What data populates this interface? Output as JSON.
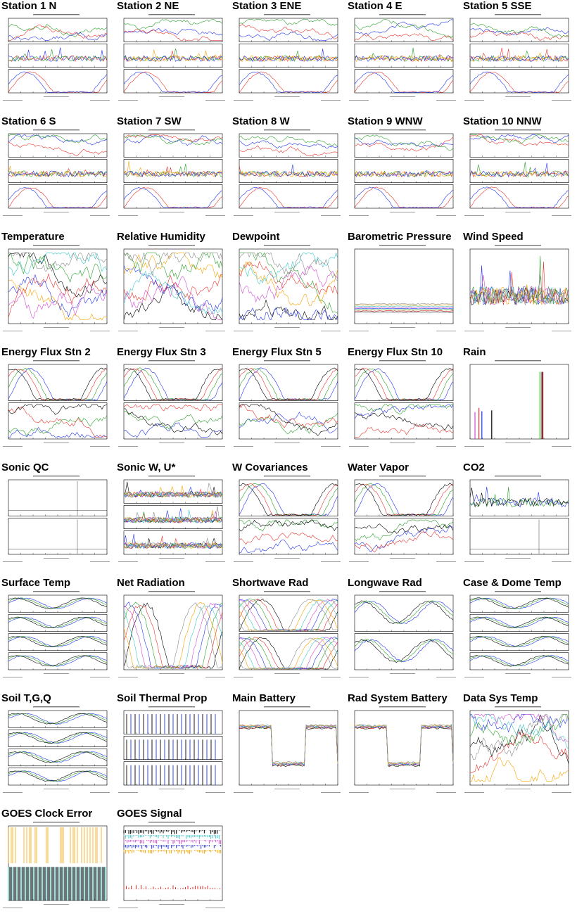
{
  "colors": {
    "red": "#e8332d",
    "green": "#2aa02a",
    "blue": "#2233ee",
    "orange": "#f5a400",
    "black": "#000000",
    "cyan": "#3fc6c6",
    "magenta": "#d24ad2",
    "gray": "#8a8a8a"
  },
  "plots": [
    {
      "title": "Station 1 N",
      "kind": "station",
      "panels": 3
    },
    {
      "title": "Station 2 NE",
      "kind": "station",
      "panels": 3
    },
    {
      "title": "Station 3 ENE",
      "kind": "station",
      "panels": 3
    },
    {
      "title": "Station 4 E",
      "kind": "station",
      "panels": 3
    },
    {
      "title": "Station 5 SSE",
      "kind": "station",
      "panels": 3
    },
    {
      "title": "Station 6 S",
      "kind": "station",
      "panels": 3
    },
    {
      "title": "Station 7 SW",
      "kind": "station",
      "panels": 3
    },
    {
      "title": "Station 8 W",
      "kind": "station",
      "panels": 3
    },
    {
      "title": "Station 9 WNW",
      "kind": "station",
      "panels": 3
    },
    {
      "title": "Station 10 NNW",
      "kind": "station",
      "panels": 3
    },
    {
      "title": "Temperature",
      "kind": "multi",
      "panels": 1
    },
    {
      "title": "Relative Humidity",
      "kind": "multi",
      "panels": 1
    },
    {
      "title": "Dewpoint",
      "kind": "multi",
      "panels": 1
    },
    {
      "title": "Barometric Pressure",
      "kind": "flat",
      "panels": 1
    },
    {
      "title": "Wind Speed",
      "kind": "noisy",
      "panels": 1
    },
    {
      "title": "Energy Flux Stn 2",
      "kind": "flux",
      "panels": 2
    },
    {
      "title": "Energy Flux Stn 3",
      "kind": "flux",
      "panels": 2
    },
    {
      "title": "Energy Flux Stn 5",
      "kind": "flux",
      "panels": 2
    },
    {
      "title": "Energy Flux Stn 10",
      "kind": "flux",
      "panels": 2
    },
    {
      "title": "Rain",
      "kind": "spikes",
      "panels": 1
    },
    {
      "title": "Sonic QC",
      "kind": "sparse",
      "panels": 2
    },
    {
      "title": "Sonic W, U*",
      "kind": "noisy",
      "panels": 3
    },
    {
      "title": "W Covariances",
      "kind": "flux",
      "panels": 2
    },
    {
      "title": "Water Vapor",
      "kind": "flux",
      "panels": 2
    },
    {
      "title": "CO2",
      "kind": "sparse",
      "panels": 2
    },
    {
      "title": "Surface Temp",
      "kind": "smooth",
      "panels": 4
    },
    {
      "title": "Net Radiation",
      "kind": "diurnal",
      "panels": 1
    },
    {
      "title": "Shortwave Rad",
      "kind": "diurnal",
      "panels": 2
    },
    {
      "title": "Longwave Rad",
      "kind": "smooth",
      "panels": 2
    },
    {
      "title": "Case & Dome Temp",
      "kind": "smooth",
      "panels": 4
    },
    {
      "title": "Soil T,G,Q",
      "kind": "smooth",
      "panels": 4
    },
    {
      "title": "Soil Thermal Prop",
      "kind": "bars",
      "panels": 3
    },
    {
      "title": "Main Battery",
      "kind": "battery",
      "panels": 1
    },
    {
      "title": "Rad System Battery",
      "kind": "battery",
      "panels": 1
    },
    {
      "title": "Data Sys Temp",
      "kind": "multi",
      "panels": 1
    },
    {
      "title": "GOES Clock Error",
      "kind": "dense",
      "panels": 1
    },
    {
      "title": "GOES Signal",
      "kind": "signal",
      "panels": 1
    }
  ]
}
